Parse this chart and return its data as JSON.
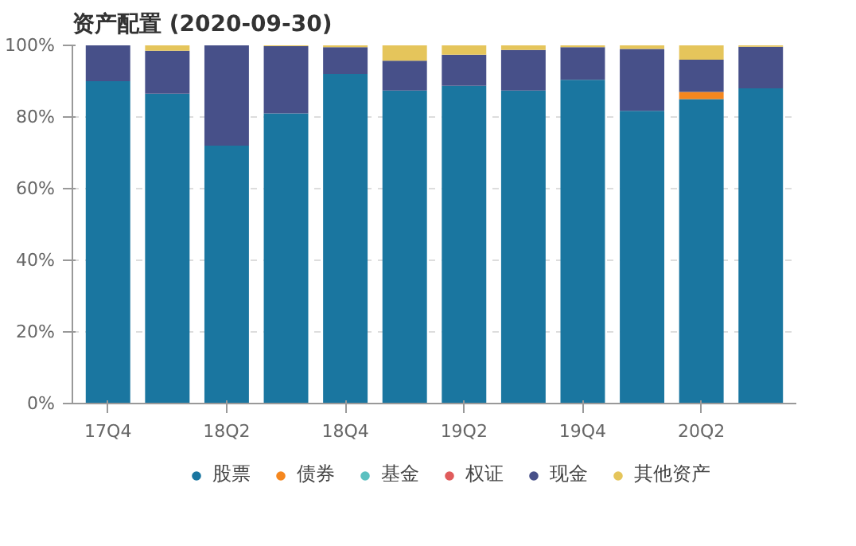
{
  "chart_data": {
    "type": "bar",
    "title": "资产配置 (2020-09-30)",
    "stacked": true,
    "categories": [
      "17Q4",
      null,
      "18Q2",
      null,
      "18Q4",
      null,
      "19Q2",
      null,
      "19Q4",
      null,
      "20Q2",
      null
    ],
    "series": [
      {
        "name": "股票",
        "color": "#1a76a0",
        "values": [
          90,
          86.5,
          72,
          81,
          92,
          87.4,
          88.7,
          87.4,
          90.4,
          81.7,
          85,
          88
        ]
      },
      {
        "name": "债券",
        "color": "#f5871f",
        "values": [
          0,
          0,
          0,
          0,
          0,
          0,
          0,
          0,
          0,
          0,
          2,
          0
        ]
      },
      {
        "name": "基金",
        "color": "#5bc0c0",
        "values": [
          0,
          0,
          0,
          0,
          0,
          0,
          0,
          0,
          0,
          0,
          0,
          0
        ]
      },
      {
        "name": "权证",
        "color": "#e05c5c",
        "values": [
          0,
          0,
          0,
          0,
          0,
          0,
          0,
          0,
          0,
          0,
          0,
          0
        ]
      },
      {
        "name": "现金",
        "color": "#475089",
        "values": [
          10,
          12,
          28,
          18.8,
          7.5,
          8.3,
          8.7,
          11.3,
          9.1,
          17.3,
          9,
          11.6
        ]
      },
      {
        "name": "其他资产",
        "color": "#e5c55b",
        "values": [
          0,
          1.5,
          0,
          0.2,
          0.5,
          4.3,
          2.6,
          1.3,
          0.5,
          1,
          4,
          0.4
        ]
      }
    ],
    "ylim": [
      0,
      100
    ],
    "yticks": [
      {
        "value": 0,
        "label": "0%"
      },
      {
        "value": 20,
        "label": "20%"
      },
      {
        "value": 40,
        "label": "40%"
      },
      {
        "value": 60,
        "label": "60%"
      },
      {
        "value": 80,
        "label": "80%"
      },
      {
        "value": 100,
        "label": "100%"
      }
    ],
    "grid": "y",
    "legend": "bottom"
  }
}
